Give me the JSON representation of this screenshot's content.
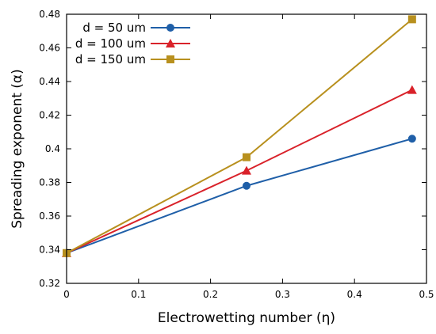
{
  "chart_data": {
    "type": "line",
    "title": "",
    "xlabel": "Electrowetting number (η)",
    "ylabel": "Spreading exponent (α)",
    "xlim": [
      0,
      0.5
    ],
    "ylim": [
      0.32,
      0.48
    ],
    "xticks": [
      "0",
      "0.1",
      "0.2",
      "0.3",
      "0.4",
      "0.5"
    ],
    "yticks": [
      "0.32",
      "0.34",
      "0.36",
      "0.38",
      "0.4",
      "0.42",
      "0.44",
      "0.46",
      "0.48"
    ],
    "grid": false,
    "legend_position": "top-left",
    "series": [
      {
        "name": "d = 50 um",
        "color": "#1f5fa8",
        "marker": "circle",
        "x": [
          0,
          0.25,
          0.48
        ],
        "y": [
          0.338,
          0.378,
          0.406
        ]
      },
      {
        "name": "d = 100 um",
        "color": "#d9222a",
        "marker": "triangle",
        "x": [
          0,
          0.25,
          0.48
        ],
        "y": [
          0.338,
          0.387,
          0.435
        ]
      },
      {
        "name": "d = 150 um",
        "color": "#b8901e",
        "marker": "square",
        "x": [
          0,
          0.25,
          0.48
        ],
        "y": [
          0.338,
          0.395,
          0.477
        ]
      }
    ]
  }
}
